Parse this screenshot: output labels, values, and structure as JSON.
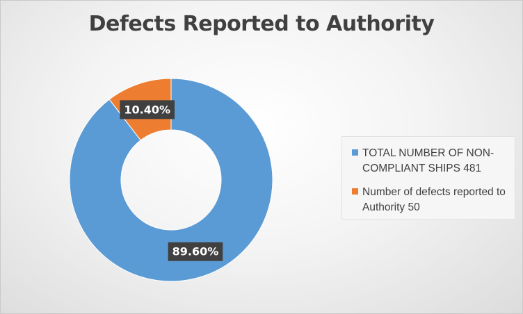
{
  "chart_data": {
    "type": "pie",
    "donut": true,
    "title": "Defects Reported to Authority",
    "slices": [
      {
        "label": "TOTAL NUMBER OF NON-COMPLIANT SHIPS 481",
        "value": 89.6,
        "data_label": "89.60%",
        "color": "#5b9bd5"
      },
      {
        "label": "Number of defects reported to Authority 50",
        "value": 10.4,
        "data_label": "10.40%",
        "color": "#ed7d31"
      }
    ],
    "legend_position": "right"
  }
}
